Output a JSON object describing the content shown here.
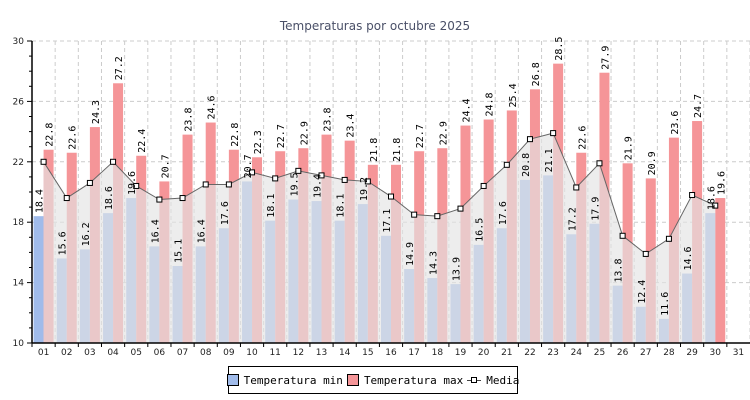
{
  "chart_data": {
    "type": "bar",
    "title": "Temperaturas por octubre 2025",
    "xlabel": "",
    "ylabel": "",
    "ylim": [
      10,
      30
    ],
    "yticks": [
      "10",
      "14",
      "18",
      "22",
      "26",
      "30"
    ],
    "grid": true,
    "legend_position": "bottom",
    "categories": [
      "01",
      "02",
      "03",
      "04",
      "05",
      "06",
      "07",
      "08",
      "09",
      "10",
      "11",
      "12",
      "13",
      "14",
      "15",
      "16",
      "17",
      "18",
      "19",
      "20",
      "21",
      "22",
      "23",
      "24",
      "25",
      "26",
      "27",
      "28",
      "29",
      "30",
      "31"
    ],
    "series": [
      {
        "name": "Temperatura min",
        "type": "bar",
        "color": "#a0bbea",
        "values": [
          18.4,
          15.6,
          16.2,
          18.6,
          19.6,
          16.4,
          15.1,
          16.4,
          17.6,
          20.7,
          18.1,
          19.5,
          19.4,
          18.1,
          19.2,
          17.1,
          14.9,
          14.3,
          13.9,
          16.5,
          17.6,
          20.8,
          21.1,
          17.2,
          17.9,
          13.8,
          12.4,
          11.6,
          14.6,
          18.6,
          null
        ],
        "labels": [
          "18.4",
          "15.6",
          "16.2",
          "18.6",
          "19.6",
          "16.4",
          "15.1",
          "16.4",
          "17.6",
          "20.7",
          "18.1",
          "19.5",
          "19.4",
          "18.1",
          "19.2",
          "17.1",
          "14.9",
          "14.3",
          "13.9",
          "16.5",
          "17.6",
          "20.8",
          "21.1",
          "17.2",
          "17.9",
          "13.8",
          "12.4",
          "11.6",
          "14.6",
          "18.6",
          ""
        ]
      },
      {
        "name": "Temperatura max",
        "type": "bar",
        "color": "#f59598",
        "values": [
          22.8,
          22.6,
          24.3,
          27.2,
          22.4,
          20.7,
          23.8,
          24.6,
          22.8,
          22.3,
          22.7,
          22.9,
          23.8,
          23.4,
          21.8,
          21.8,
          22.7,
          22.9,
          24.4,
          24.8,
          25.4,
          26.8,
          28.5,
          22.6,
          27.9,
          21.9,
          20.9,
          23.6,
          24.7,
          19.6,
          null
        ],
        "labels": [
          "22.8",
          "22.6",
          "24.3",
          "27.2",
          "22.4",
          "20.7",
          "23.8",
          "24.6",
          "22.8",
          "22.3",
          "22.7",
          "22.9",
          "23.8",
          "23.4",
          "21.8",
          "21.8",
          "22.7",
          "22.9",
          "24.4",
          "24.8",
          "25.4",
          "26.8",
          "28.5",
          "22.6",
          "27.9",
          "21.9",
          "20.9",
          "23.6",
          "24.7",
          "19.6",
          ""
        ]
      },
      {
        "name": "Media",
        "type": "line",
        "color": "#555555",
        "fill": "#e4e4e4",
        "values": [
          22.0,
          19.6,
          20.6,
          22.0,
          20.4,
          19.5,
          19.6,
          20.5,
          20.5,
          21.3,
          20.9,
          21.4,
          21.1,
          20.8,
          20.7,
          19.7,
          18.5,
          18.4,
          18.9,
          20.4,
          21.8,
          23.5,
          23.9,
          20.3,
          21.9,
          17.1,
          15.9,
          16.9,
          19.8,
          19.1,
          null
        ]
      }
    ]
  }
}
